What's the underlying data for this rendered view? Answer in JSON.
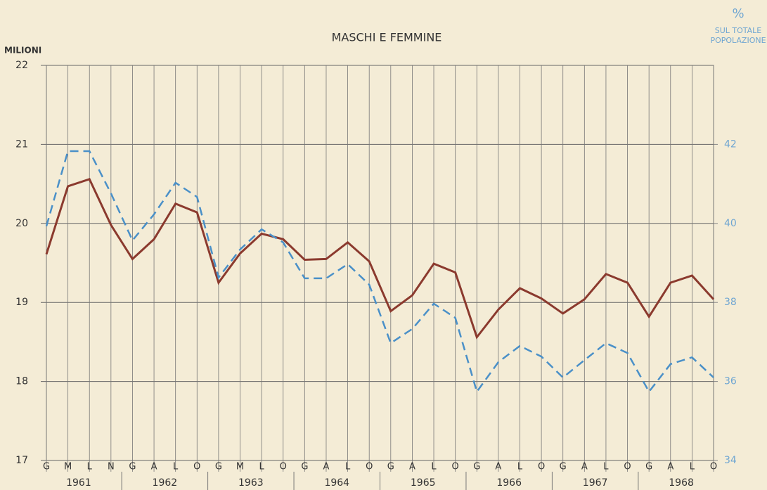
{
  "chart_data": {
    "type": "line",
    "title": "MASCHI E FEMMINE",
    "ylabel": "MILIONI",
    "y2label": [
      "%",
      "SUL TOTALE",
      "POPOLAZIONE"
    ],
    "categories": [
      "G",
      "M",
      "L",
      "N",
      "G",
      "A",
      "L",
      "O",
      "G",
      "M",
      "L",
      "O",
      "G",
      "A",
      "L",
      "O",
      "G",
      "A",
      "L",
      "O",
      "G",
      "A",
      "L",
      "O",
      "G",
      "A",
      "L",
      "O",
      "G",
      "A",
      "L",
      "O"
    ],
    "years": [
      "1961",
      "1962",
      "1963",
      "1964",
      "1965",
      "1966",
      "1967",
      "1968"
    ],
    "ylim": [
      17,
      22
    ],
    "yticks": [
      17,
      18,
      19,
      20,
      21,
      22
    ],
    "y2lim": [
      34,
      44
    ],
    "y2ticks": [
      34,
      36,
      38,
      40,
      42
    ],
    "grid": true,
    "series": [
      {
        "name": "MASCHI E FEMMINE",
        "color": "#8b3a2e",
        "axis": "y",
        "values": [
          19.61,
          20.47,
          20.56,
          19.98,
          19.55,
          19.8,
          20.25,
          20.14,
          19.25,
          19.62,
          19.87,
          19.8,
          19.54,
          19.55,
          19.76,
          19.52,
          18.89,
          19.09,
          19.49,
          19.38,
          18.56,
          18.91,
          19.18,
          19.05,
          18.86,
          19.04,
          19.36,
          19.25,
          18.82,
          19.25,
          19.34,
          19.04
        ]
      },
      {
        "name": "% SUL TOTALE POPOLAZIONE",
        "color": "#4a90c8",
        "axis": "y2",
        "dashed": true,
        "values": [
          39.93,
          41.83,
          41.83,
          40.76,
          39.57,
          40.23,
          41.03,
          40.67,
          38.63,
          39.34,
          39.85,
          39.52,
          38.61,
          38.61,
          38.97,
          38.45,
          36.97,
          37.33,
          37.97,
          37.61,
          35.74,
          36.49,
          36.9,
          36.63,
          36.1,
          36.54,
          36.97,
          36.72,
          35.74,
          36.44,
          36.61,
          36.1
        ]
      }
    ]
  }
}
